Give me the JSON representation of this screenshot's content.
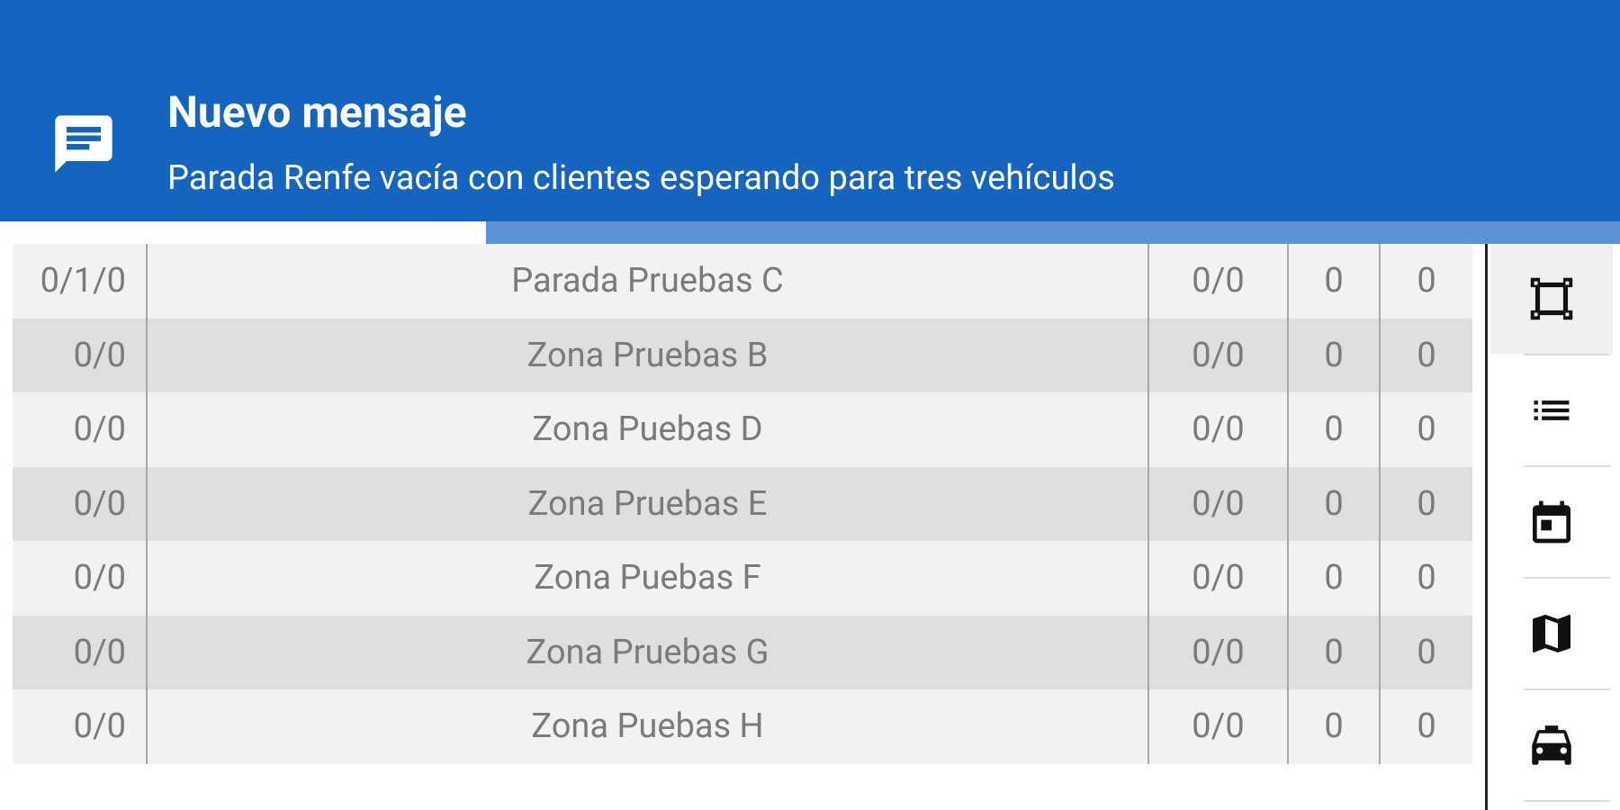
{
  "notification": {
    "title": "Nuevo mensaje",
    "text": "Parada Renfe vacía con clientes esperando para tres vehículos",
    "icon": "message-icon",
    "progress": 0.3,
    "color": "#1565c0"
  },
  "table": {
    "rows": [
      {
        "c1": "0/1/0",
        "c2": "Parada Pruebas C",
        "c3": "0/0",
        "c4": "0",
        "c5": "0"
      },
      {
        "c1": "0/0",
        "c2": "Zona Pruebas B",
        "c3": "0/0",
        "c4": "0",
        "c5": "0"
      },
      {
        "c1": "0/0",
        "c2": "Zona Puebas D",
        "c3": "0/0",
        "c4": "0",
        "c5": "0"
      },
      {
        "c1": "0/0",
        "c2": "Zona Pruebas E",
        "c3": "0/0",
        "c4": "0",
        "c5": "0"
      },
      {
        "c1": "0/0",
        "c2": "Zona Puebas F",
        "c3": "0/0",
        "c4": "0",
        "c5": "0"
      },
      {
        "c1": "0/0",
        "c2": "Zona Pruebas G",
        "c3": "0/0",
        "c4": "0",
        "c5": "0"
      },
      {
        "c1": "0/0",
        "c2": "Zona Puebas H",
        "c3": "0/0",
        "c4": "0",
        "c5": "0"
      }
    ]
  },
  "sidebar": {
    "items": [
      {
        "icon": "zones-icon",
        "active": true
      },
      {
        "icon": "list-icon",
        "active": false
      },
      {
        "icon": "calendar-icon",
        "active": false
      },
      {
        "icon": "map-icon",
        "active": false
      },
      {
        "icon": "taxi-icon",
        "active": false
      }
    ]
  }
}
